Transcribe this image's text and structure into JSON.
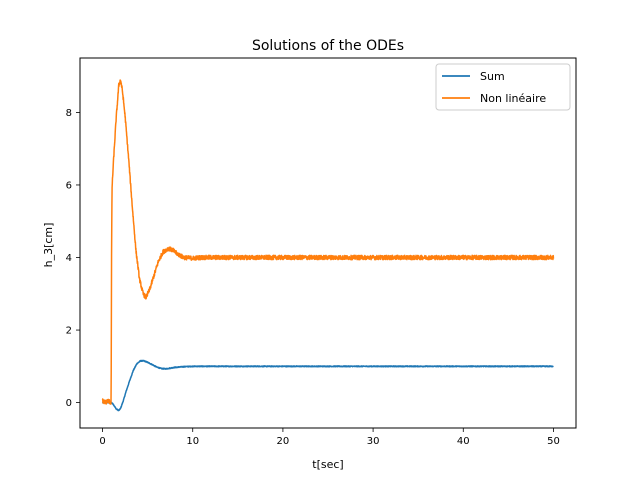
{
  "chart_data": {
    "type": "line",
    "title": "Solutions of the ODEs",
    "xlabel": "t[sec]",
    "ylabel": "h_3[cm]",
    "xlim": [
      -2.5,
      52.5
    ],
    "ylim": [
      -0.7,
      9.5
    ],
    "xticks": [
      0,
      10,
      20,
      30,
      40,
      50
    ],
    "yticks": [
      0,
      2,
      4,
      6,
      8
    ],
    "grid": false,
    "legend_position": "top-right",
    "series": [
      {
        "name": "Sum",
        "color": "#1f77b4",
        "noise": 0.012,
        "x": [
          0,
          1.0,
          1.2,
          1.5,
          1.8,
          2.0,
          2.3,
          2.6,
          3.0,
          3.4,
          3.8,
          4.2,
          4.6,
          5.0,
          5.5,
          6.0,
          6.5,
          7.0,
          7.5,
          8.0,
          9.0,
          10.0,
          11.0,
          12.0,
          15.0,
          20.0,
          25.0,
          30.0,
          35.0,
          40.0,
          45.0,
          50.0
        ],
        "y": [
          0,
          0,
          -0.05,
          -0.17,
          -0.22,
          -0.16,
          0.05,
          0.3,
          0.6,
          0.88,
          1.07,
          1.15,
          1.15,
          1.11,
          1.05,
          0.98,
          0.94,
          0.93,
          0.95,
          0.97,
          0.99,
          1.0,
          1.0,
          1.0,
          1.0,
          1.0,
          1.0,
          1.0,
          1.0,
          1.0,
          1.0,
          1.0
        ]
      },
      {
        "name": "Non linéaire",
        "color": "#ff7f0e",
        "noise": 0.06,
        "x": [
          0,
          0.3,
          0.6,
          0.95,
          1.0,
          1.05,
          1.2,
          1.5,
          1.8,
          2.0,
          2.2,
          2.5,
          2.9,
          3.3,
          3.7,
          4.1,
          4.5,
          4.8,
          5.2,
          5.7,
          6.2,
          6.7,
          7.3,
          7.8,
          8.3,
          9.0,
          10.0,
          11.0,
          12.0,
          15.0,
          20.0,
          25.0,
          30.0,
          35.0,
          40.0,
          45.0,
          50.0
        ],
        "y": [
          0.05,
          0.0,
          0.05,
          0.0,
          4.0,
          5.9,
          6.6,
          7.8,
          8.75,
          8.9,
          8.6,
          7.9,
          6.7,
          5.4,
          4.2,
          3.4,
          3.0,
          2.9,
          3.1,
          3.5,
          3.9,
          4.15,
          4.25,
          4.2,
          4.1,
          4.0,
          3.98,
          4.0,
          4.0,
          4.0,
          4.0,
          4.0,
          4.0,
          4.0,
          4.0,
          4.0,
          4.0
        ]
      }
    ]
  }
}
